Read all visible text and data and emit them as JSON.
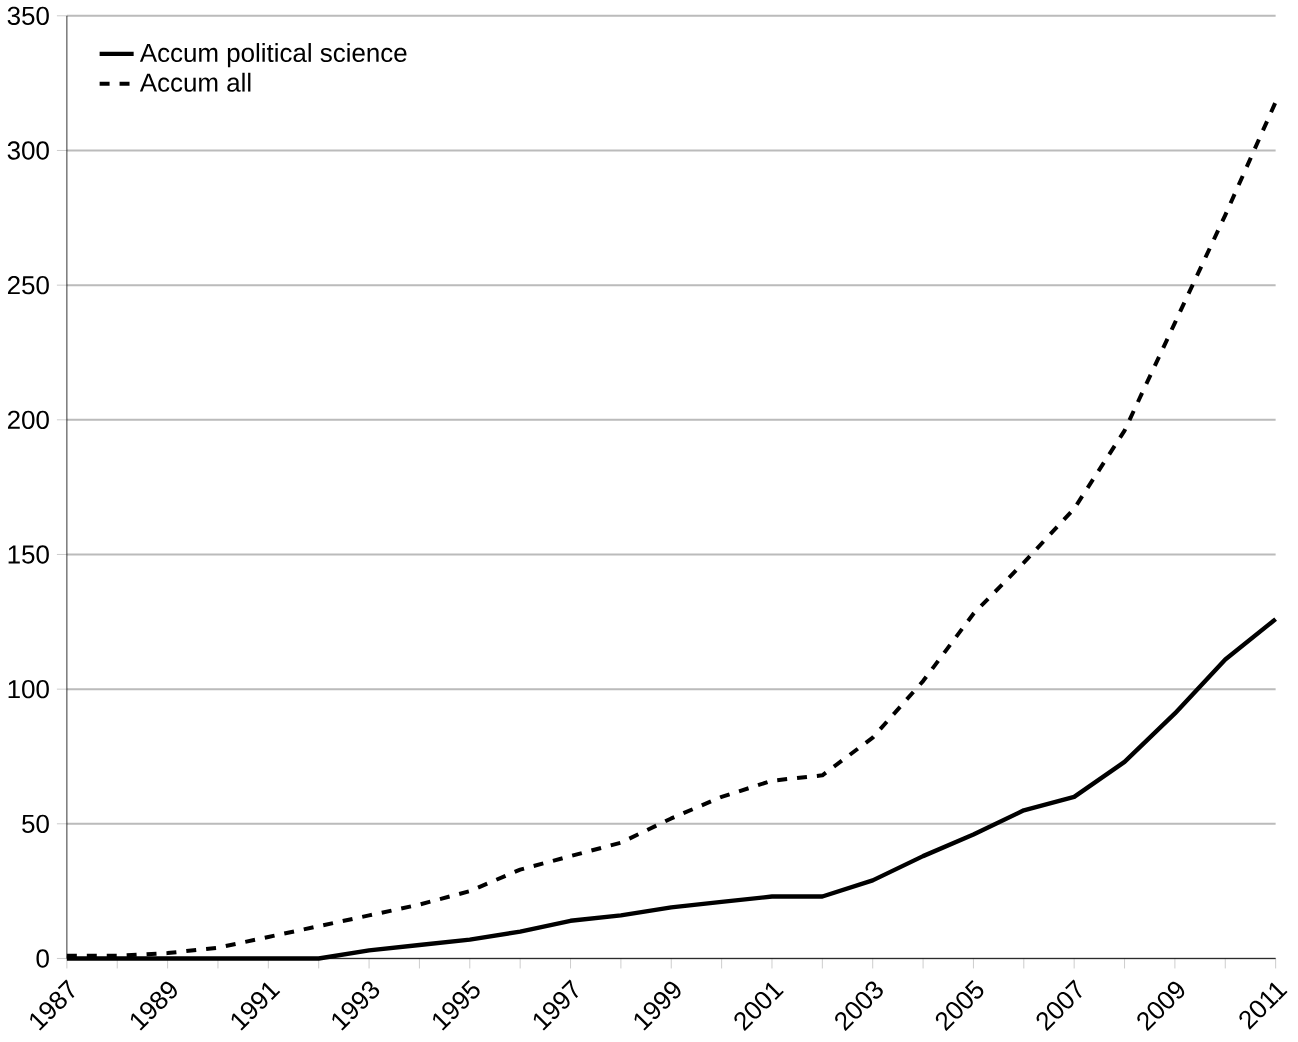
{
  "chart_data": {
    "type": "line",
    "x": [
      1987,
      1988,
      1989,
      1990,
      1991,
      1992,
      1993,
      1994,
      1995,
      1996,
      1997,
      1998,
      1999,
      2000,
      2001,
      2002,
      2003,
      2004,
      2005,
      2006,
      2007,
      2008,
      2009,
      2010,
      2011
    ],
    "series": [
      {
        "name": "Accum political science",
        "color": "#000000",
        "line_style": "solid",
        "values": [
          0,
          0,
          0,
          0,
          0,
          0,
          3,
          5,
          7,
          10,
          14,
          16,
          19,
          21,
          23,
          23,
          29,
          38,
          46,
          55,
          60,
          73,
          91,
          111,
          126
        ]
      },
      {
        "name": "Accum all",
        "color": "#000000",
        "line_style": "dashed",
        "values": [
          1,
          1,
          2,
          4,
          8,
          12,
          16,
          20,
          25,
          33,
          38,
          43,
          52,
          60,
          66,
          68,
          82,
          103,
          128,
          147,
          167,
          196,
          236,
          276,
          318
        ]
      }
    ],
    "xlim": [
      1987,
      2011
    ],
    "xticks": [
      1987,
      1989,
      1991,
      1993,
      1995,
      1997,
      1999,
      2001,
      2003,
      2005,
      2007,
      2009,
      2011
    ],
    "ylim": [
      0,
      350
    ],
    "yticks": [
      0,
      50,
      100,
      150,
      200,
      250,
      300,
      350
    ],
    "grid": "y",
    "legend": "top left",
    "marker": "none"
  }
}
